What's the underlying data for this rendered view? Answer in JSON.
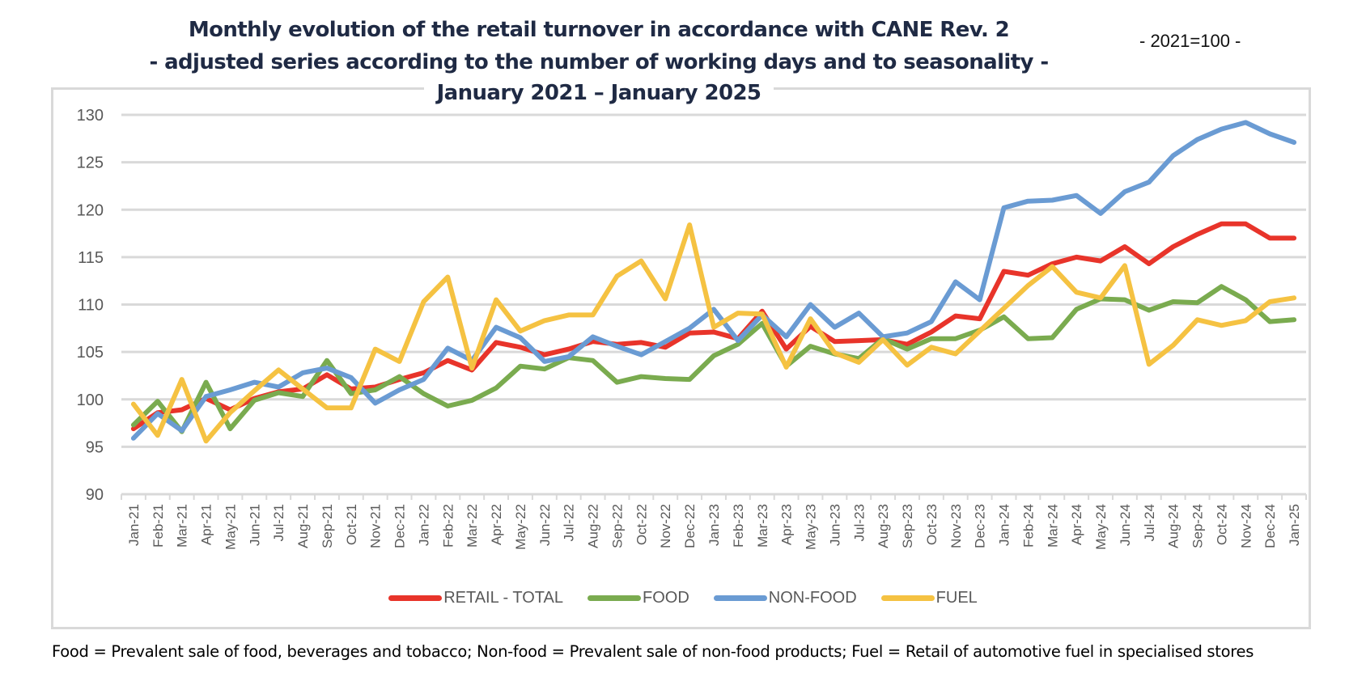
{
  "header": {
    "title_line1": "Monthly evolution of the retail turnover in accordance with CANE Rev. 2",
    "title_line2": "- adjusted series according to the number of working days and to seasonality -",
    "title_line3": "January 2021 – January 2025",
    "base_note": "- 2021=100 -"
  },
  "footnote": "Food = Prevalent sale of food, beverages and tobacco; Non-food = Prevalent sale of non-food products; Fuel = Retail of automotive fuel in specialised stores",
  "chart_data": {
    "type": "line",
    "title": "Monthly evolution of the retail turnover in accordance with CANE Rev. 2 - adjusted series according to the number of working days and to seasonality - January 2021 – January 2025",
    "xlabel": "",
    "ylabel": "",
    "ylim": [
      90,
      130
    ],
    "yticks": [
      90,
      95,
      100,
      105,
      110,
      115,
      120,
      125,
      130
    ],
    "grid": true,
    "legend_position": "bottom",
    "categories": [
      "Jan-21",
      "Feb-21",
      "Mar-21",
      "Apr-21",
      "May-21",
      "Jun-21",
      "Jul-21",
      "Aug-21",
      "Sep-21",
      "Oct-21",
      "Nov-21",
      "Dec-21",
      "Jan-22",
      "Feb-22",
      "Mar-22",
      "Apr-22",
      "May-22",
      "Jun-22",
      "Jul-22",
      "Aug-22",
      "Sep-22",
      "Oct-22",
      "Nov-22",
      "Dec-22",
      "Jan-23",
      "Feb-23",
      "Mar-23",
      "Apr-23",
      "May-23",
      "Jun-23",
      "Jul-23",
      "Aug-23",
      "Sep-23",
      "Oct-23",
      "Nov-23",
      "Dec-23",
      "Jan-24",
      "Feb-24",
      "Mar-24",
      "Apr-24",
      "May-24",
      "Jun-24",
      "Jul-24",
      "Aug-24",
      "Sep-24",
      "Oct-24",
      "Nov-24",
      "Dec-24",
      "Jan-25"
    ],
    "series": [
      {
        "name": "RETAIL - TOTAL",
        "color": "#e8342a",
        "values": [
          96.9,
          98.6,
          98.9,
          100.1,
          98.9,
          100.1,
          100.8,
          101.1,
          102.6,
          101.1,
          101.3,
          102.1,
          102.8,
          104.1,
          103.1,
          106.0,
          105.5,
          104.7,
          105.3,
          106.1,
          105.8,
          106.0,
          105.5,
          107.0,
          107.1,
          106.4,
          109.3,
          105.3,
          107.7,
          106.1,
          106.2,
          106.3,
          105.8,
          107.1,
          108.8,
          108.5,
          113.5,
          113.1,
          114.3,
          115.0,
          114.6,
          116.1,
          114.3,
          116.1,
          117.4,
          118.5,
          118.5,
          117.0,
          117.0
        ]
      },
      {
        "name": "FOOD",
        "color": "#7aab4f",
        "values": [
          97.3,
          99.8,
          96.6,
          101.8,
          96.9,
          99.9,
          100.7,
          100.3,
          104.1,
          100.6,
          101.0,
          102.4,
          100.6,
          99.3,
          99.9,
          101.2,
          103.5,
          103.2,
          104.4,
          104.1,
          101.8,
          102.4,
          102.2,
          102.1,
          104.6,
          105.8,
          108.0,
          103.5,
          105.6,
          104.8,
          104.3,
          106.4,
          105.3,
          106.4,
          106.4,
          107.3,
          108.7,
          106.4,
          106.5,
          109.5,
          110.6,
          110.5,
          109.4,
          110.3,
          110.2,
          111.9,
          110.5,
          108.2,
          108.4
        ]
      },
      {
        "name": "NON-FOOD",
        "color": "#6a9bd3",
        "values": [
          95.9,
          98.5,
          96.7,
          100.3,
          101.0,
          101.8,
          101.3,
          102.8,
          103.3,
          102.3,
          99.6,
          101.0,
          102.1,
          105.4,
          104.1,
          107.6,
          106.5,
          104.0,
          104.5,
          106.6,
          105.6,
          104.7,
          106.1,
          107.5,
          109.5,
          106.2,
          108.9,
          106.6,
          110.0,
          107.6,
          109.1,
          106.6,
          107.0,
          108.2,
          112.4,
          110.5,
          120.2,
          120.9,
          121.0,
          121.5,
          119.6,
          121.9,
          122.9,
          125.7,
          127.4,
          128.5,
          129.2,
          128.0,
          127.1
        ]
      },
      {
        "name": "FUEL",
        "color": "#f5c242",
        "values": [
          99.5,
          96.2,
          102.1,
          95.6,
          98.6,
          100.9,
          103.1,
          101.1,
          99.1,
          99.1,
          105.3,
          104.0,
          110.3,
          112.9,
          103.3,
          110.5,
          107.2,
          108.3,
          108.9,
          108.9,
          113.0,
          114.6,
          110.6,
          118.4,
          107.6,
          109.1,
          109.0,
          103.4,
          108.5,
          104.9,
          103.9,
          106.3,
          103.6,
          105.5,
          104.8,
          107.2,
          109.6,
          112.0,
          114.0,
          111.3,
          110.7,
          114.1,
          103.7,
          105.7,
          108.4,
          107.8,
          108.3,
          110.3,
          110.7
        ]
      }
    ]
  }
}
